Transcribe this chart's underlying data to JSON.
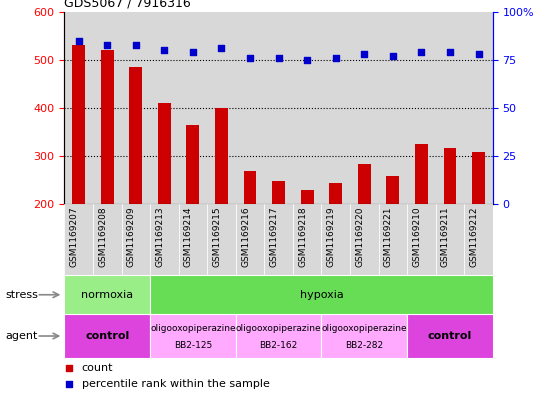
{
  "title": "GDS5067 / 7916316",
  "samples": [
    "GSM1169207",
    "GSM1169208",
    "GSM1169209",
    "GSM1169213",
    "GSM1169214",
    "GSM1169215",
    "GSM1169216",
    "GSM1169217",
    "GSM1169218",
    "GSM1169219",
    "GSM1169220",
    "GSM1169221",
    "GSM1169210",
    "GSM1169211",
    "GSM1169212"
  ],
  "counts": [
    530,
    520,
    485,
    410,
    365,
    400,
    270,
    248,
    230,
    245,
    283,
    258,
    325,
    318,
    308
  ],
  "percentiles": [
    85,
    83,
    83,
    80,
    79,
    81,
    76,
    76,
    75,
    76,
    78,
    77,
    79,
    79,
    78
  ],
  "ylim_left": [
    200,
    600
  ],
  "ylim_right": [
    0,
    100
  ],
  "yticks_left": [
    200,
    300,
    400,
    500,
    600
  ],
  "yticks_right": [
    0,
    25,
    50,
    75,
    100
  ],
  "bar_color": "#cc0000",
  "dot_color": "#0000cc",
  "bg_color": "#ffffff",
  "col_bg_color": "#d8d8d8",
  "stress_groups": [
    {
      "label": "normoxia",
      "start": 0,
      "end": 3,
      "color": "#99ee88"
    },
    {
      "label": "hypoxia",
      "start": 3,
      "end": 15,
      "color": "#66dd55"
    }
  ],
  "agent_groups": [
    {
      "label": "control",
      "start": 0,
      "end": 3,
      "color": "#dd44dd",
      "text_lines": [
        "control"
      ],
      "bold": true
    },
    {
      "label": "oligooxopiperazine BB2-125",
      "start": 3,
      "end": 6,
      "color": "#ffaaff",
      "text_lines": [
        "oligooxopiperazine",
        "BB2-125"
      ],
      "bold": false
    },
    {
      "label": "oligooxopiperazine BB2-162",
      "start": 6,
      "end": 9,
      "color": "#ffaaff",
      "text_lines": [
        "oligooxopiperazine",
        "BB2-162"
      ],
      "bold": false
    },
    {
      "label": "oligooxopiperazine BB2-282",
      "start": 9,
      "end": 12,
      "color": "#ffaaff",
      "text_lines": [
        "oligooxopiperazine",
        "BB2-282"
      ],
      "bold": false
    },
    {
      "label": "control",
      "start": 12,
      "end": 15,
      "color": "#dd44dd",
      "text_lines": [
        "control"
      ],
      "bold": true
    }
  ],
  "stress_label": "stress",
  "agent_label": "agent",
  "legend_count_color": "#cc0000",
  "legend_pct_color": "#0000cc",
  "legend_count_label": "count",
  "legend_pct_label": "percentile rank within the sample"
}
